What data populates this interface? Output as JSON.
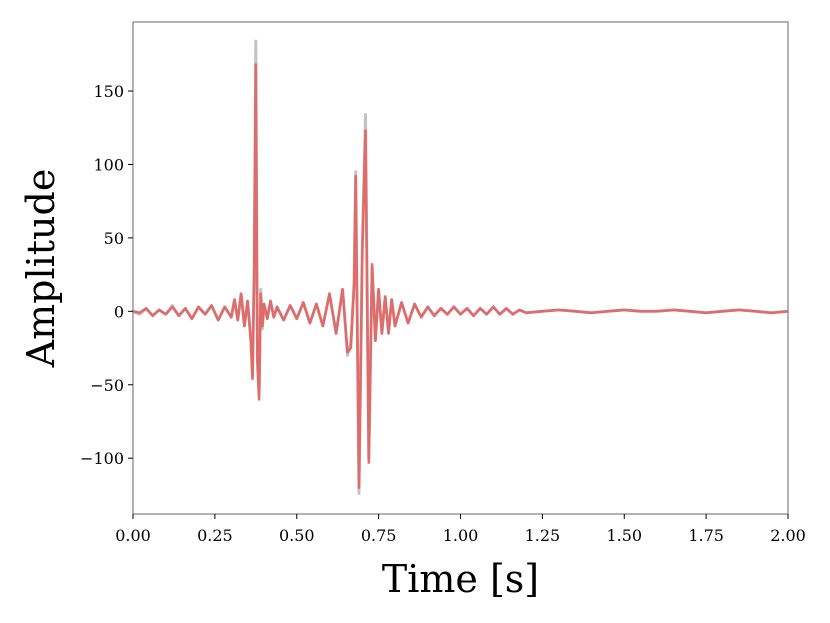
{
  "chart_data": {
    "type": "line",
    "title": "",
    "xlabel": "Time [s]",
    "ylabel": "Amplitude",
    "xlim": [
      0,
      2
    ],
    "ylim": [
      -138,
      197
    ],
    "x_ticks": [
      0,
      0.25,
      0.5,
      0.75,
      1,
      1.25,
      1.5,
      1.75,
      2
    ],
    "x_tick_labels": [
      "0.00",
      "0.25",
      "0.50",
      "0.75",
      "1.00",
      "1.25",
      "1.50",
      "1.75",
      "2.00"
    ],
    "y_ticks": [
      -100,
      -50,
      0,
      50,
      100,
      150
    ],
    "y_tick_labels": [
      "−100",
      "−50",
      "0",
      "50",
      "100",
      "150"
    ],
    "grid": false,
    "legend": "none",
    "colors": {
      "series_1": "#bdbdbd",
      "series_2": "#e06666",
      "frame": "#808080"
    },
    "series": [
      {
        "color": "#bdbdbd",
        "x": [
          0,
          0.02,
          0.04,
          0.06,
          0.08,
          0.1,
          0.12,
          0.14,
          0.16,
          0.18,
          0.2,
          0.22,
          0.24,
          0.26,
          0.28,
          0.3,
          0.31,
          0.32,
          0.33,
          0.34,
          0.35,
          0.36,
          0.365,
          0.37,
          0.375,
          0.38,
          0.385,
          0.39,
          0.395,
          0.4,
          0.41,
          0.42,
          0.43,
          0.44,
          0.46,
          0.48,
          0.5,
          0.52,
          0.54,
          0.56,
          0.58,
          0.6,
          0.62,
          0.64,
          0.655,
          0.665,
          0.675,
          0.68,
          0.69,
          0.7,
          0.71,
          0.72,
          0.73,
          0.74,
          0.75,
          0.76,
          0.77,
          0.78,
          0.79,
          0.8,
          0.82,
          0.84,
          0.86,
          0.88,
          0.9,
          0.92,
          0.94,
          0.96,
          0.98,
          1.0,
          1.02,
          1.04,
          1.06,
          1.08,
          1.1,
          1.12,
          1.14,
          1.16,
          1.18,
          1.2,
          1.25,
          1.3,
          1.35,
          1.4,
          1.45,
          1.5,
          1.55,
          1.6,
          1.65,
          1.7,
          1.75,
          1.8,
          1.85,
          1.9,
          1.95,
          2.0
        ],
        "y": [
          0,
          -2,
          2,
          -3,
          1,
          -2,
          4,
          -3,
          2,
          -5,
          3,
          -2,
          4,
          -6,
          3,
          -4,
          8,
          -6,
          12,
          -10,
          7,
          -20,
          -44,
          30,
          184,
          -30,
          -55,
          15,
          -12,
          5,
          -5,
          7,
          -4,
          3,
          -6,
          4,
          -5,
          6,
          -8,
          5,
          -10,
          12,
          -15,
          15,
          -30,
          -22,
          20,
          95,
          -124,
          45,
          134,
          -100,
          30,
          -20,
          15,
          -15,
          10,
          -15,
          8,
          -10,
          6,
          -8,
          5,
          -4,
          3,
          -3,
          2,
          -2,
          3,
          -2,
          2,
          -3,
          2,
          -2,
          3,
          -2,
          2,
          -2,
          1,
          -1,
          0,
          1,
          0,
          -1,
          0,
          1,
          0,
          0,
          1,
          0,
          -1,
          0,
          1,
          0,
          -1,
          0
        ]
      },
      {
        "color": "#e06666",
        "x": [
          0,
          0.02,
          0.04,
          0.06,
          0.08,
          0.1,
          0.12,
          0.14,
          0.16,
          0.18,
          0.2,
          0.22,
          0.24,
          0.26,
          0.28,
          0.3,
          0.31,
          0.32,
          0.33,
          0.34,
          0.35,
          0.36,
          0.365,
          0.37,
          0.375,
          0.38,
          0.385,
          0.39,
          0.395,
          0.4,
          0.41,
          0.42,
          0.43,
          0.44,
          0.46,
          0.48,
          0.5,
          0.52,
          0.54,
          0.56,
          0.58,
          0.6,
          0.62,
          0.64,
          0.655,
          0.665,
          0.675,
          0.68,
          0.69,
          0.7,
          0.71,
          0.72,
          0.73,
          0.74,
          0.75,
          0.76,
          0.77,
          0.78,
          0.79,
          0.8,
          0.82,
          0.84,
          0.86,
          0.88,
          0.9,
          0.92,
          0.94,
          0.96,
          0.98,
          1.0,
          1.02,
          1.04,
          1.06,
          1.08,
          1.1,
          1.12,
          1.14,
          1.16,
          1.18,
          1.2,
          1.25,
          1.3,
          1.35,
          1.4,
          1.45,
          1.5,
          1.55,
          1.6,
          1.65,
          1.7,
          1.75,
          1.8,
          1.85,
          1.9,
          1.95,
          2.0
        ],
        "y": [
          0,
          -1,
          2,
          -3,
          1,
          -2,
          3,
          -3,
          2,
          -5,
          3,
          -2,
          4,
          -6,
          3,
          -4,
          8,
          -6,
          12,
          -10,
          7,
          -20,
          -46,
          28,
          168,
          -35,
          -60,
          12,
          -10,
          5,
          -5,
          7,
          -4,
          3,
          -6,
          4,
          -5,
          6,
          -8,
          5,
          -10,
          12,
          -15,
          15,
          -28,
          -25,
          18,
          92,
          -120,
          40,
          123,
          -103,
          32,
          -20,
          15,
          -15,
          10,
          -15,
          8,
          -10,
          6,
          -8,
          5,
          -4,
          3,
          -3,
          2,
          -2,
          3,
          -2,
          2,
          -3,
          2,
          -2,
          3,
          -2,
          2,
          -2,
          1,
          -1,
          0,
          1,
          0,
          -1,
          0,
          1,
          0,
          0,
          1,
          0,
          -1,
          0,
          1,
          0,
          -1,
          0
        ]
      }
    ]
  }
}
